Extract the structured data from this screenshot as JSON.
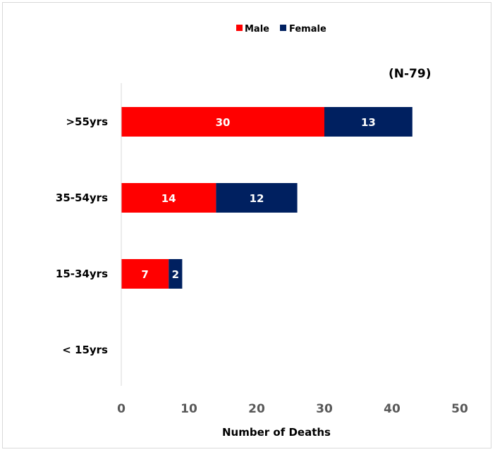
{
  "chart_data": {
    "type": "bar",
    "orientation": "horizontal",
    "stacked": true,
    "categories": [
      "< 15yrs",
      "15-34yrs",
      "35-54yrs",
      ">55yrs"
    ],
    "series": [
      {
        "name": "Male",
        "values": [
          0,
          7,
          14,
          30
        ],
        "color": "#ff0000"
      },
      {
        "name": "Female",
        "values": [
          0,
          2,
          12,
          13
        ],
        "color": "#002060"
      }
    ],
    "xlabel": "Number of Deaths",
    "ylabel": "",
    "xlim": [
      0,
      50
    ],
    "xticks": [
      "0",
      "10",
      "20",
      "30",
      "40",
      "50"
    ],
    "annotation": "(N-79)",
    "legend_position": "top",
    "grid": false
  }
}
